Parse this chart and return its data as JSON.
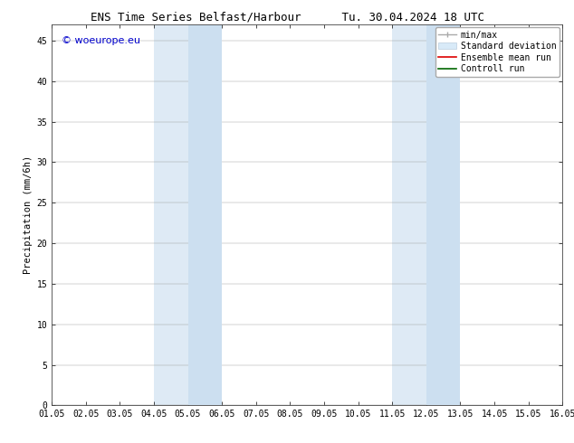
{
  "title": "ENS Time Series Belfast/Harbour      Tu. 30.04.2024 18 UTC",
  "ylabel": "Precipitation (mm/6h)",
  "xlim": [
    0,
    15
  ],
  "ylim": [
    0,
    47
  ],
  "yticks": [
    0,
    5,
    10,
    15,
    20,
    25,
    30,
    35,
    40,
    45
  ],
  "xtick_labels": [
    "01.05",
    "02.05",
    "03.05",
    "04.05",
    "05.05",
    "06.05",
    "07.05",
    "08.05",
    "09.05",
    "10.05",
    "11.05",
    "12.05",
    "13.05",
    "14.05",
    "15.05",
    "16.05"
  ],
  "shaded_outer": [
    {
      "x_start": 3.0,
      "x_end": 5.0,
      "color": "#deeaf5"
    },
    {
      "x_start": 10.0,
      "x_end": 12.0,
      "color": "#deeaf5"
    }
  ],
  "shaded_inner": [
    {
      "x_start": 4.0,
      "x_end": 5.0,
      "color": "#ccdff0"
    },
    {
      "x_start": 11.0,
      "x_end": 12.0,
      "color": "#ccdff0"
    }
  ],
  "watermark": "© woeurope.eu",
  "watermark_color": "#0000cc",
  "bg_color": "#ffffff",
  "grid_color": "#999999",
  "spine_color": "#444444",
  "title_fontsize": 9,
  "tick_fontsize": 7,
  "ylabel_fontsize": 7.5,
  "watermark_fontsize": 8,
  "legend_fontsize": 7
}
